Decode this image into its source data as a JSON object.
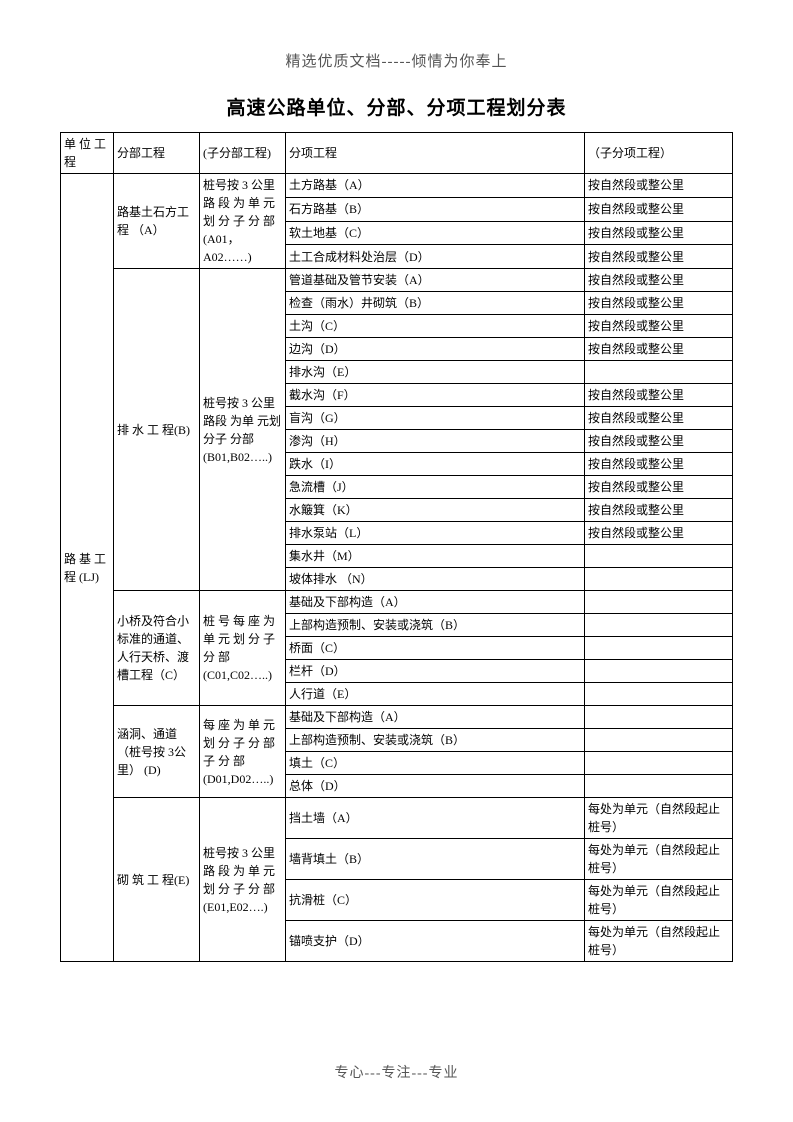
{
  "header": "精选优质文档-----倾情为你奉上",
  "title": "高速公路单位、分部、分项工程划分表",
  "footer": "专心---专注---专业",
  "columns": {
    "unit": "单 位 工程",
    "section": "分部工程",
    "subsection": "(子分部工程)",
    "item": "分项工程",
    "subitem": "（子分项工程）"
  },
  "unit_name": "路 基 工程  (LJ)",
  "sections": {
    "A": {
      "name": "路基土石方工程 （A）",
      "sub": "桩号按 3 公里路 段 为 单 元划 分 子 分 部(A01，A02……)",
      "rows": [
        {
          "item": "土方路基（A）",
          "subitem": "按自然段或整公里"
        },
        {
          "item": "石方路基（B）",
          "subitem": "按自然段或整公里"
        },
        {
          "item": "软土地基（C）",
          "subitem": "按自然段或整公里"
        },
        {
          "item": "土工合成材料处治层（D）",
          "subitem": "按自然段或整公里"
        }
      ]
    },
    "B": {
      "name": "排 水 工 程(B)",
      "sub": "桩号按 3 公里路段 为单 元划 分子 分部(B01,B02…..)",
      "rows": [
        {
          "item": "管道基础及管节安装（A）",
          "subitem": "按自然段或整公里"
        },
        {
          "item": "检查（雨水）井砌筑（B）",
          "subitem": "按自然段或整公里"
        },
        {
          "item": "土沟（C）",
          "subitem": "按自然段或整公里"
        },
        {
          "item": "边沟（D）",
          "subitem": "按自然段或整公里"
        },
        {
          "item": "排水沟（E）",
          "subitem": ""
        },
        {
          "item": "截水沟（F）",
          "subitem": "按自然段或整公里"
        },
        {
          "item": "盲沟（G）",
          "subitem": "按自然段或整公里"
        },
        {
          "item": "渗沟（H）",
          "subitem": "按自然段或整公里"
        },
        {
          "item": "跌水（I）",
          "subitem": "按自然段或整公里"
        },
        {
          "item": "急流槽（J）",
          "subitem": "按自然段或整公里"
        },
        {
          "item": "水簸箕（K）",
          "subitem": "按自然段或整公里"
        },
        {
          "item": "排水泵站（L）",
          "subitem": "按自然段或整公里"
        },
        {
          "item": "集水井（M）",
          "subitem": ""
        },
        {
          "item": "坡体排水 （N）",
          "subitem": ""
        }
      ]
    },
    "C": {
      "name": "小桥及符合小标准的通道、人行天桥、渡槽工程（C）",
      "sub": "桩 号 每 座 为单 元 划 分 子分          部(C01,C02…..)",
      "rows": [
        {
          "item": "基础及下部构造（A）",
          "subitem": ""
        },
        {
          "item": "上部构造预制、安装或浇筑（B）",
          "subitem": ""
        },
        {
          "item": "桥面（C）",
          "subitem": ""
        },
        {
          "item": "栏杆（D）",
          "subitem": ""
        },
        {
          "item": "人行道（E）",
          "subitem": ""
        }
      ]
    },
    "D": {
      "name": "涵洞、通道（桩号按 3公里） (D)",
      "sub": "每 座 为 单 元划 分 子 分 部子    分    部(D01,D02…..)",
      "rows": [
        {
          "item": "基础及下部构造（A）",
          "subitem": ""
        },
        {
          "item": "上部构造预制、安装或浇筑（B）",
          "subitem": ""
        },
        {
          "item": "填土（C）",
          "subitem": ""
        },
        {
          "item": "总体（D）",
          "subitem": ""
        }
      ]
    },
    "E": {
      "name": "砌 筑 工 程(E)",
      "sub": "桩号按 3 公里路 段 为 单 元划 分 子 分 部(E01,E02….)",
      "rows": [
        {
          "item": "挡土墙（A）",
          "subitem": "每处为单元（自然段起止桩号）"
        },
        {
          "item": "墙背填土（B）",
          "subitem": "每处为单元（自然段起止桩号）"
        },
        {
          "item": "抗滑桩（C）",
          "subitem": "每处为单元（自然段起止桩号）"
        },
        {
          "item": "锚喷支护（D）",
          "subitem": "每处为单元（自然段起止桩号）"
        }
      ]
    }
  }
}
